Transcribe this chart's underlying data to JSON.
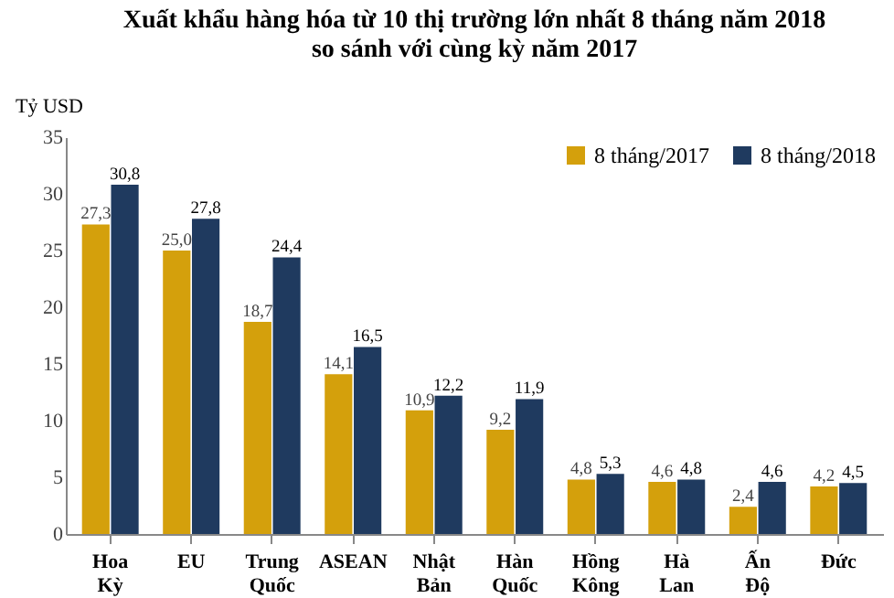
{
  "chart_data": {
    "type": "bar",
    "title": "Xuất khẩu hàng hóa từ 10 thị trường lớn nhất 8 tháng năm 2018",
    "subtitle": "so sánh với cùng kỳ năm 2017",
    "ylabel": "Tỷ USD",
    "categories": [
      "Hoa Kỳ",
      "EU",
      "Trung Quốc",
      "ASEAN",
      "Nhật Bản",
      "Hàn Quốc",
      "Hồng Kông",
      "Hà Lan",
      "Ấn Độ",
      "Đức"
    ],
    "series": [
      {
        "name": "8 tháng/2017",
        "color": "#d4a00c",
        "values": [
          27.3,
          25.0,
          18.7,
          14.1,
          10.9,
          9.2,
          4.8,
          4.6,
          2.4,
          4.2
        ],
        "value_labels": [
          "27,3",
          "25,0",
          "18,7",
          "14,1",
          "10,9",
          "9,2",
          "4,8",
          "4,6",
          "2,4",
          "4,2"
        ]
      },
      {
        "name": "8 tháng/2018",
        "color": "#1f3a5f",
        "values": [
          30.8,
          27.8,
          24.4,
          16.5,
          12.2,
          11.9,
          5.3,
          4.8,
          4.6,
          4.5
        ],
        "value_labels": [
          "30,8",
          "27,8",
          "24,4",
          "16,5",
          "12,2",
          "11,9",
          "5,3",
          "4,8",
          "4,6",
          "4,5"
        ]
      }
    ],
    "ylim": [
      0,
      35
    ],
    "yticks": [
      0,
      5,
      10,
      15,
      20,
      25,
      30,
      35
    ],
    "grid": false,
    "legend": "top right"
  }
}
